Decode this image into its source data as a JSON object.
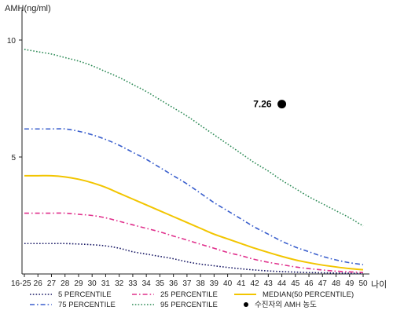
{
  "chart_data": {
    "type": "line",
    "title": "",
    "ylabel": "AMH(ng/ml)",
    "xlabel": "나이",
    "ylim": [
      0,
      11
    ],
    "yticks": [
      5,
      10
    ],
    "categories": [
      "16-25",
      "26",
      "27",
      "28",
      "29",
      "30",
      "31",
      "32",
      "33",
      "34",
      "35",
      "36",
      "37",
      "38",
      "39",
      "40",
      "41",
      "42",
      "43",
      "44",
      "45",
      "46",
      "47",
      "48",
      "49",
      "50"
    ],
    "grid": false,
    "legend_position": "bottom",
    "series": [
      {
        "name": "5 PERCENTILE",
        "color": "#1a1a66",
        "dash": "dotted",
        "values": [
          1.3,
          1.3,
          1.3,
          1.3,
          1.28,
          1.25,
          1.2,
          1.1,
          0.95,
          0.85,
          0.75,
          0.65,
          0.52,
          0.42,
          0.35,
          0.28,
          0.22,
          0.17,
          0.13,
          0.1,
          0.08,
          0.06,
          0.05,
          0.04,
          0.03,
          0.02
        ]
      },
      {
        "name": "75 PERCENTILE",
        "color": "#3a5fcd",
        "dash": "dashdot",
        "values": [
          6.2,
          6.2,
          6.2,
          6.2,
          6.1,
          5.95,
          5.75,
          5.5,
          5.2,
          4.9,
          4.55,
          4.2,
          3.85,
          3.45,
          3.05,
          2.7,
          2.35,
          2.0,
          1.7,
          1.4,
          1.15,
          0.95,
          0.75,
          0.6,
          0.48,
          0.4
        ]
      },
      {
        "name": "25 PERCENTILE",
        "color": "#e0308c",
        "dash": "dashdot",
        "values": [
          2.6,
          2.6,
          2.6,
          2.6,
          2.55,
          2.5,
          2.4,
          2.25,
          2.1,
          1.95,
          1.8,
          1.62,
          1.45,
          1.27,
          1.1,
          0.92,
          0.78,
          0.62,
          0.5,
          0.4,
          0.3,
          0.23,
          0.17,
          0.12,
          0.09,
          0.06
        ]
      },
      {
        "name": "95 PERCENTILE",
        "color": "#2e8b57",
        "dash": "dotted",
        "values": [
          9.6,
          9.5,
          9.4,
          9.25,
          9.1,
          8.9,
          8.65,
          8.4,
          8.1,
          7.8,
          7.45,
          7.1,
          6.75,
          6.35,
          5.95,
          5.55,
          5.15,
          4.75,
          4.4,
          4.0,
          3.65,
          3.3,
          3.0,
          2.7,
          2.4,
          2.05
        ]
      },
      {
        "name": "MEDIAN(50 PERCENTILE)",
        "color": "#f2c500",
        "dash": "solid",
        "values": [
          4.2,
          4.2,
          4.2,
          4.15,
          4.05,
          3.9,
          3.7,
          3.45,
          3.2,
          2.95,
          2.7,
          2.45,
          2.2,
          1.95,
          1.7,
          1.5,
          1.3,
          1.1,
          0.92,
          0.75,
          0.6,
          0.48,
          0.38,
          0.3,
          0.23,
          0.18
        ]
      }
    ],
    "patient_point": {
      "legend": "수진자의 AMH 농도",
      "label": "7.26",
      "x": "44",
      "y": 7.26,
      "color": "#000000"
    }
  }
}
